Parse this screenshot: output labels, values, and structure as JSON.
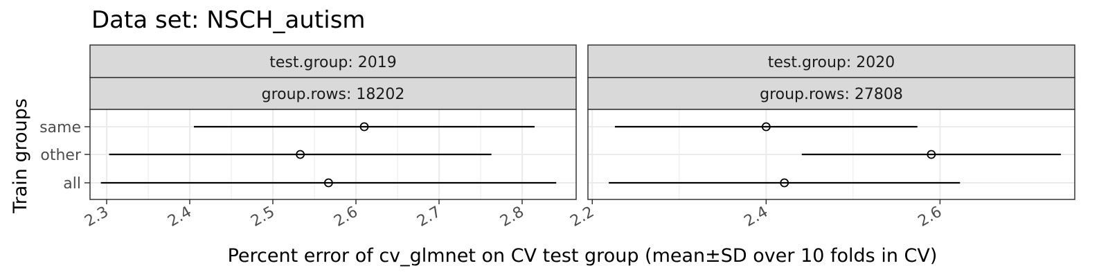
{
  "chart_data": {
    "type": "errorbar-dotplot",
    "title": "Data set: NSCH_autism",
    "xlabel": "Percent error of cv_glmnet on CV test group (mean±SD over 10 folds in CV)",
    "ylabel": "Train groups",
    "y_categories": [
      "same",
      "other",
      "all"
    ],
    "facet_labels": {
      "test_group_prefix": "test.group: ",
      "group_rows_prefix": "group.rows: "
    },
    "colors": {
      "strip_fill": "#d9d9d9",
      "grid": "#ebebeb",
      "mark": "#000000"
    },
    "panels": [
      {
        "test_group": "2019",
        "group_rows": "18202",
        "xlim": [
          2.28,
          2.865
        ],
        "x_ticks": [
          2.3,
          2.4,
          2.5,
          2.6,
          2.7,
          2.8
        ],
        "x_tick_labels": [
          "2.3",
          "2.4",
          "2.5",
          "2.6",
          "2.7",
          "2.8"
        ],
        "points": [
          {
            "group": "same",
            "mean": 2.61,
            "lo": 2.405,
            "hi": 2.815
          },
          {
            "group": "other",
            "mean": 2.533,
            "lo": 2.303,
            "hi": 2.763
          },
          {
            "group": "all",
            "mean": 2.567,
            "lo": 2.293,
            "hi": 2.841
          }
        ]
      },
      {
        "test_group": "2020",
        "group_rows": "27808",
        "xlim": [
          2.195,
          2.755
        ],
        "x_ticks": [
          2.2,
          2.4,
          2.6
        ],
        "x_tick_labels": [
          "2.2",
          "2.4",
          "2.6"
        ],
        "points": [
          {
            "group": "same",
            "mean": 2.4,
            "lo": 2.226,
            "hi": 2.574
          },
          {
            "group": "other",
            "mean": 2.59,
            "lo": 2.441,
            "hi": 2.739
          },
          {
            "group": "all",
            "mean": 2.421,
            "lo": 2.219,
            "hi": 2.623
          }
        ]
      }
    ]
  }
}
